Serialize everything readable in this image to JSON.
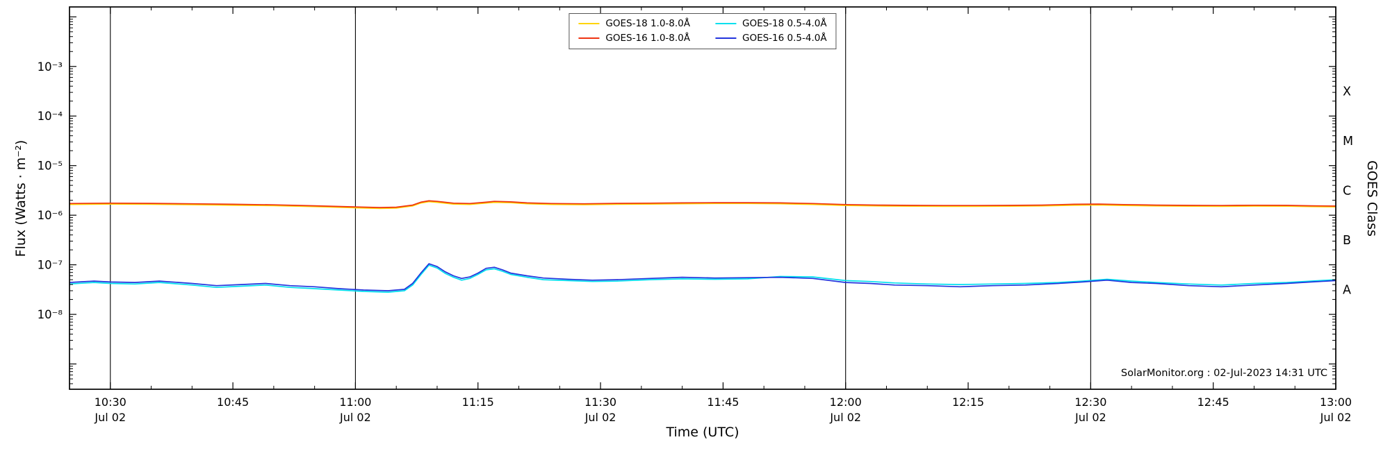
{
  "chart_data": {
    "type": "line",
    "xlabel": "Time (UTC)",
    "ylabel": "Flux (Watts · m⁻²)",
    "ylabel_right": "GOES Class",
    "credit": "SolarMonitor.org : 02-Jul-2023 14:31 UTC",
    "y_scale": "log",
    "ylim_log10": [
      -9.51,
      -1.8
    ],
    "x_range": [
      "10:25",
      "13:00"
    ],
    "x_major_ticks": [
      {
        "time": "10:30",
        "label": "10:30",
        "sublabel": "Jul 02"
      },
      {
        "time": "10:45",
        "label": "10:45",
        "sublabel": ""
      },
      {
        "time": "11:00",
        "label": "11:00",
        "sublabel": "Jul 02"
      },
      {
        "time": "11:15",
        "label": "11:15",
        "sublabel": ""
      },
      {
        "time": "11:30",
        "label": "11:30",
        "sublabel": "Jul 02"
      },
      {
        "time": "11:45",
        "label": "11:45",
        "sublabel": ""
      },
      {
        "time": "12:00",
        "label": "12:00",
        "sublabel": "Jul 02"
      },
      {
        "time": "12:15",
        "label": "12:15",
        "sublabel": ""
      },
      {
        "time": "12:30",
        "label": "12:30",
        "sublabel": "Jul 02"
      },
      {
        "time": "12:45",
        "label": "12:45",
        "sublabel": ""
      },
      {
        "time": "13:00",
        "label": "13:00",
        "sublabel": "Jul 02"
      }
    ],
    "y_tick_labels": [
      {
        "exp": -3,
        "label": "10⁻³"
      },
      {
        "exp": -4,
        "label": "10⁻⁴"
      },
      {
        "exp": -5,
        "label": "10⁻⁵"
      },
      {
        "exp": -6,
        "label": "10⁻⁶"
      },
      {
        "exp": -7,
        "label": "10⁻⁷"
      },
      {
        "exp": -8,
        "label": "10⁻⁸"
      }
    ],
    "goes_class_labels": [
      {
        "label": "X",
        "log10_mid": -3.5
      },
      {
        "label": "M",
        "log10_mid": -4.5
      },
      {
        "label": "C",
        "log10_mid": -5.5
      },
      {
        "label": "B",
        "log10_mid": -6.5
      },
      {
        "label": "A",
        "log10_mid": -7.5
      }
    ],
    "vlines": [
      "10:30",
      "11:00",
      "12:00",
      "12:30",
      "13:00"
    ],
    "legend": {
      "position": "top-center",
      "entries": [
        {
          "label": "GOES-18 1.0-8.0Å",
          "color": "#ffd400"
        },
        {
          "label": "GOES-16 1.0-8.0Å",
          "color": "#ee3311"
        },
        {
          "label": "GOES-18 0.5-4.0Å",
          "color": "#00e0ee"
        },
        {
          "label": "GOES-16 0.5-4.0Å",
          "color": "#2233dd"
        }
      ]
    },
    "series": [
      {
        "id": "goes-18-long",
        "name": "GOES-18 1.0-8.0Å",
        "color": "#ffd400",
        "t": [
          "10:25",
          "10:30",
          "10:35",
          "10:40",
          "10:45",
          "10:50",
          "10:55",
          "11:00",
          "11:03",
          "11:05",
          "11:07",
          "11:08",
          "11:09",
          "11:10",
          "11:12",
          "11:14",
          "11:16",
          "11:17",
          "11:19",
          "11:21",
          "11:24",
          "11:28",
          "11:32",
          "11:36",
          "11:40",
          "11:44",
          "11:48",
          "11:52",
          "11:56",
          "12:00",
          "12:04",
          "12:08",
          "12:12",
          "12:16",
          "12:20",
          "12:24",
          "12:28",
          "12:31",
          "12:34",
          "12:38",
          "12:42",
          "12:46",
          "12:50",
          "12:54",
          "12:57",
          "13:00"
        ],
        "flux": [
          1.65e-06,
          1.68e-06,
          1.66e-06,
          1.63e-06,
          1.59e-06,
          1.56e-06,
          1.49e-06,
          1.41e-06,
          1.37e-06,
          1.39e-06,
          1.54e-06,
          1.76e-06,
          1.87e-06,
          1.82e-06,
          1.68e-06,
          1.65e-06,
          1.76e-06,
          1.82e-06,
          1.79e-06,
          1.7e-06,
          1.65e-06,
          1.63e-06,
          1.66e-06,
          1.68e-06,
          1.7e-06,
          1.72e-06,
          1.72e-06,
          1.7e-06,
          1.65e-06,
          1.57e-06,
          1.54e-06,
          1.52e-06,
          1.51e-06,
          1.51e-06,
          1.52e-06,
          1.54e-06,
          1.59e-06,
          1.61e-06,
          1.57e-06,
          1.54e-06,
          1.52e-06,
          1.51e-06,
          1.53e-06,
          1.52e-06,
          1.49e-06,
          1.47e-06
        ]
      },
      {
        "id": "goes-16-long",
        "name": "GOES-16 1.0-8.0Å",
        "color": "#ee3311",
        "t": [
          "10:25",
          "10:30",
          "10:35",
          "10:40",
          "10:45",
          "10:50",
          "10:55",
          "11:00",
          "11:03",
          "11:05",
          "11:07",
          "11:08",
          "11:09",
          "11:10",
          "11:12",
          "11:14",
          "11:16",
          "11:17",
          "11:19",
          "11:21",
          "11:24",
          "11:28",
          "11:32",
          "11:36",
          "11:40",
          "11:44",
          "11:48",
          "11:52",
          "11:56",
          "12:00",
          "12:04",
          "12:08",
          "12:12",
          "12:16",
          "12:20",
          "12:24",
          "12:28",
          "12:31",
          "12:34",
          "12:38",
          "12:42",
          "12:46",
          "12:50",
          "12:54",
          "12:57",
          "13:00"
        ],
        "flux": [
          1.72e-06,
          1.75e-06,
          1.73e-06,
          1.7e-06,
          1.66e-06,
          1.62e-06,
          1.55e-06,
          1.47e-06,
          1.43e-06,
          1.45e-06,
          1.6e-06,
          1.83e-06,
          1.95e-06,
          1.9e-06,
          1.75e-06,
          1.72e-06,
          1.83e-06,
          1.9e-06,
          1.86e-06,
          1.77e-06,
          1.72e-06,
          1.7e-06,
          1.73e-06,
          1.75e-06,
          1.77e-06,
          1.79e-06,
          1.79e-06,
          1.77e-06,
          1.72e-06,
          1.64e-06,
          1.6e-06,
          1.58e-06,
          1.57e-06,
          1.57e-06,
          1.58e-06,
          1.6e-06,
          1.66e-06,
          1.68e-06,
          1.64e-06,
          1.6e-06,
          1.58e-06,
          1.57e-06,
          1.59e-06,
          1.58e-06,
          1.55e-06,
          1.53e-06
        ]
      },
      {
        "id": "goes-18-short",
        "name": "GOES-18 0.5-4.0Å",
        "color": "#00e0ee",
        "t": [
          "10:25",
          "10:28",
          "10:30",
          "10:33",
          "10:36",
          "10:40",
          "10:43",
          "10:46",
          "10:49",
          "10:52",
          "10:55",
          "10:58",
          "11:01",
          "11:04",
          "11:06",
          "11:07",
          "11:08",
          "11:09",
          "11:10",
          "11:11",
          "11:12",
          "11:13",
          "11:14",
          "11:15",
          "11:16",
          "11:17",
          "11:18",
          "11:19",
          "11:21",
          "11:23",
          "11:26",
          "11:29",
          "11:32",
          "11:36",
          "11:40",
          "11:44",
          "11:48",
          "11:52",
          "11:56",
          "12:00",
          "12:03",
          "12:06",
          "12:10",
          "12:14",
          "12:18",
          "12:22",
          "12:26",
          "12:29",
          "12:32",
          "12:35",
          "12:38",
          "12:42",
          "12:46",
          "12:50",
          "12:54",
          "12:57",
          "13:00"
        ],
        "flux": [
          4.1e-08,
          4.4e-08,
          4.2e-08,
          4.1e-08,
          4.4e-08,
          3.9e-08,
          3.5e-08,
          3.7e-08,
          3.9e-08,
          3.5e-08,
          3.3e-08,
          3.1e-08,
          2.9e-08,
          2.8e-08,
          3e-08,
          3.9e-08,
          6.3e-08,
          9.8e-08,
          8.6e-08,
          6.7e-08,
          5.6e-08,
          4.9e-08,
          5.3e-08,
          6.4e-08,
          7.9e-08,
          8.3e-08,
          7.4e-08,
          6.4e-08,
          5.6e-08,
          5e-08,
          4.8e-08,
          4.6e-08,
          4.7e-08,
          5e-08,
          5.2e-08,
          5.1e-08,
          5.2e-08,
          5.8e-08,
          5.7e-08,
          4.8e-08,
          4.6e-08,
          4.3e-08,
          4.1e-08,
          4e-08,
          4.1e-08,
          4.2e-08,
          4.4e-08,
          4.7e-08,
          5.1e-08,
          4.7e-08,
          4.4e-08,
          4.1e-08,
          3.9e-08,
          4.2e-08,
          4.4e-08,
          4.7e-08,
          5e-08
        ]
      },
      {
        "id": "goes-16-short",
        "name": "GOES-16 0.5-4.0Å",
        "color": "#2233dd",
        "t": [
          "10:25",
          "10:28",
          "10:30",
          "10:33",
          "10:36",
          "10:40",
          "10:43",
          "10:46",
          "10:49",
          "10:52",
          "10:55",
          "10:58",
          "11:01",
          "11:04",
          "11:06",
          "11:07",
          "11:08",
          "11:09",
          "11:10",
          "11:11",
          "11:12",
          "11:13",
          "11:14",
          "11:15",
          "11:16",
          "11:17",
          "11:18",
          "11:19",
          "11:21",
          "11:23",
          "11:26",
          "11:29",
          "11:32",
          "11:36",
          "11:40",
          "11:44",
          "11:48",
          "11:52",
          "11:56",
          "12:00",
          "12:03",
          "12:06",
          "12:10",
          "12:14",
          "12:18",
          "12:22",
          "12:26",
          "12:29",
          "12:32",
          "12:35",
          "12:38",
          "12:42",
          "12:46",
          "12:50",
          "12:54",
          "12:57",
          "13:00"
        ],
        "flux": [
          4.4e-08,
          4.7e-08,
          4.5e-08,
          4.4e-08,
          4.7e-08,
          4.2e-08,
          3.8e-08,
          4e-08,
          4.2e-08,
          3.8e-08,
          3.6e-08,
          3.3e-08,
          3.1e-08,
          3e-08,
          3.2e-08,
          4.2e-08,
          6.8e-08,
          1.05e-07,
          9.2e-08,
          7.2e-08,
          6e-08,
          5.3e-08,
          5.7e-08,
          6.8e-08,
          8.5e-08,
          8.9e-08,
          7.9e-08,
          6.8e-08,
          6e-08,
          5.4e-08,
          5.1e-08,
          4.9e-08,
          5e-08,
          5.3e-08,
          5.6e-08,
          5.4e-08,
          5.5e-08,
          5.6e-08,
          5.3e-08,
          4.4e-08,
          4.2e-08,
          3.9e-08,
          3.8e-08,
          3.6e-08,
          3.8e-08,
          3.9e-08,
          4.2e-08,
          4.5e-08,
          4.9e-08,
          4.4e-08,
          4.2e-08,
          3.8e-08,
          3.6e-08,
          3.9e-08,
          4.2e-08,
          4.5e-08,
          4.8e-08
        ]
      }
    ]
  }
}
